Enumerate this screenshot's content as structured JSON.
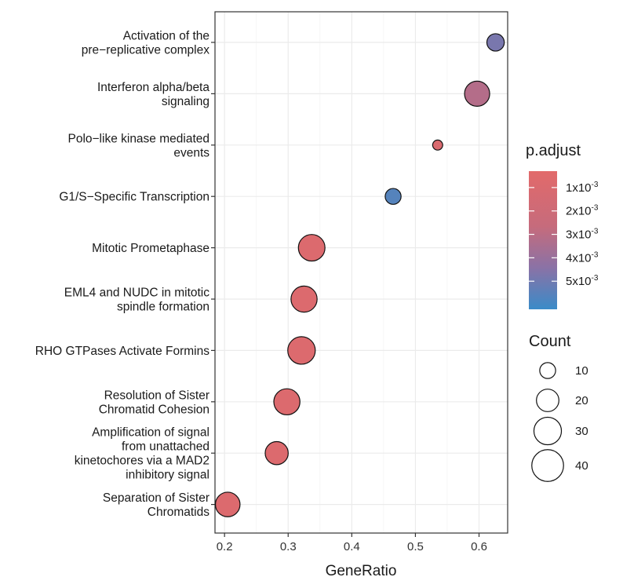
{
  "chart_data": {
    "type": "scatter",
    "xlabel": "GeneRatio",
    "ylabel": "",
    "xlim": [
      0.185,
      0.645
    ],
    "xticks": [
      0.2,
      0.3,
      0.4,
      0.5,
      0.6
    ],
    "xtick_labels": [
      "0.2",
      "0.3",
      "0.4",
      "0.5",
      "0.6"
    ],
    "grid": true,
    "categories": [
      [
        "Activation of the",
        "pre−replicative complex"
      ],
      [
        "Interferon alpha/beta",
        "signaling"
      ],
      [
        "Polo−like kinase mediated",
        "events"
      ],
      [
        "G1/S−Specific Transcription"
      ],
      [
        "Mitotic Prometaphase"
      ],
      [
        "EML4 and NUDC in mitotic",
        "spindle formation"
      ],
      [
        "RHO GTPases Activate Formins"
      ],
      [
        "Resolution of Sister",
        "Chromatid Cohesion"
      ],
      [
        "Amplification  of signal",
        "from unattached",
        "kinetochores via a MAD2",
        "inhibitory signal"
      ],
      [
        "Separation of Sister",
        "Chromatids"
      ]
    ],
    "points": [
      {
        "x": 0.626,
        "count": 12,
        "p_adjust": 0.0048
      },
      {
        "x": 0.597,
        "count": 25,
        "p_adjust": 0.0032
      },
      {
        "x": 0.535,
        "count": 4,
        "p_adjust": 0.001
      },
      {
        "x": 0.465,
        "count": 10,
        "p_adjust": 0.0056
      },
      {
        "x": 0.337,
        "count": 28,
        "p_adjust": 0.0008
      },
      {
        "x": 0.325,
        "count": 27,
        "p_adjust": 0.0008
      },
      {
        "x": 0.321,
        "count": 30,
        "p_adjust": 0.0008
      },
      {
        "x": 0.298,
        "count": 27,
        "p_adjust": 0.0008
      },
      {
        "x": 0.282,
        "count": 21,
        "p_adjust": 0.0008
      },
      {
        "x": 0.205,
        "count": 24,
        "p_adjust": 0.0008
      }
    ],
    "color_legend": {
      "title": "p.adjust",
      "range": [
        0.0003,
        0.0062
      ],
      "low_color": "#e26a6a",
      "high_color": "#3a8bc8",
      "ticks": [
        {
          "value": 0.001,
          "base": "1x10",
          "exp": "-3"
        },
        {
          "value": 0.002,
          "base": "2x10",
          "exp": "-3"
        },
        {
          "value": 0.003,
          "base": "3x10",
          "exp": "-3"
        },
        {
          "value": 0.004,
          "base": "4x10",
          "exp": "-3"
        },
        {
          "value": 0.005,
          "base": "5x10",
          "exp": "-3"
        }
      ]
    },
    "size_legend": {
      "title": "Count",
      "values": [
        10,
        20,
        30,
        40
      ],
      "labels": [
        "10",
        "20",
        "30",
        "40"
      ]
    }
  }
}
